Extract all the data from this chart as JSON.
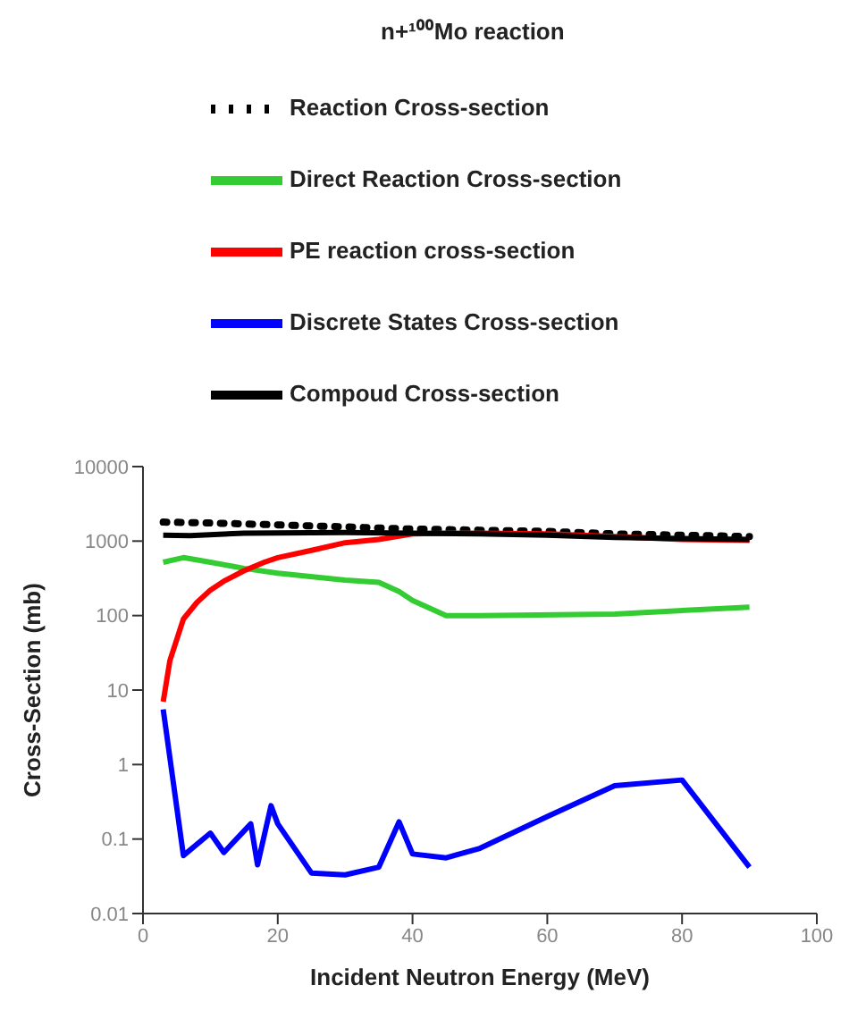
{
  "chart_data": {
    "type": "line",
    "title": "n+¹⁰⁰Mo reaction",
    "xlabel": "Incident Neutron Energy (MeV)",
    "ylabel": "Cross-Section (mb)",
    "log": "y",
    "grid": false,
    "legend": "top",
    "marker": "none",
    "xlim": [
      0,
      100
    ],
    "xticks": [
      0,
      20,
      40,
      60,
      80,
      100
    ],
    "ylim": [
      0.01,
      10000
    ],
    "yticks": [
      0.01,
      0.1,
      1,
      10,
      100,
      1000,
      10000
    ],
    "series": [
      {
        "name": "Reaction Cross-section",
        "color": "#000000",
        "line_style": "dotted",
        "x": [
          3,
          10,
          20,
          30,
          40,
          50,
          60,
          70,
          80,
          90
        ],
        "values": [
          1800,
          1750,
          1650,
          1550,
          1450,
          1400,
          1350,
          1250,
          1200,
          1150
        ]
      },
      {
        "name": "Direct Reaction Cross-section",
        "color": "#33cc33",
        "x": [
          3,
          6,
          10,
          15,
          20,
          30,
          35,
          38,
          40,
          45,
          50,
          70,
          90
        ],
        "values": [
          520,
          600,
          520,
          430,
          370,
          300,
          280,
          210,
          160,
          100,
          100,
          105,
          130
        ]
      },
      {
        "name": "PE reaction cross-section",
        "color": "#ff0000",
        "x": [
          3,
          4,
          6,
          8,
          10,
          12,
          15,
          18,
          20,
          25,
          30,
          35,
          40,
          45,
          50,
          60,
          70,
          80,
          90
        ],
        "values": [
          7,
          25,
          90,
          150,
          220,
          290,
          400,
          520,
          600,
          750,
          950,
          1050,
          1250,
          1280,
          1280,
          1250,
          1150,
          1050,
          1020
        ]
      },
      {
        "name": "Discrete States Cross-section",
        "color": "#0000ff",
        "x": [
          3,
          6,
          10,
          12,
          16,
          17,
          19,
          20,
          25,
          30,
          35,
          38,
          40,
          45,
          50,
          60,
          70,
          80,
          90
        ],
        "values": [
          5.5,
          0.06,
          0.12,
          0.066,
          0.16,
          0.045,
          0.28,
          0.16,
          0.035,
          0.033,
          0.042,
          0.17,
          0.063,
          0.056,
          0.075,
          0.2,
          0.52,
          0.62,
          0.042
        ]
      },
      {
        "name": "Compoud Cross-section",
        "color": "#000000",
        "x": [
          3,
          7,
          15,
          30,
          40,
          50,
          60,
          70,
          80,
          90
        ],
        "values": [
          1200,
          1180,
          1280,
          1300,
          1280,
          1250,
          1200,
          1120,
          1080,
          1050
        ]
      }
    ]
  }
}
